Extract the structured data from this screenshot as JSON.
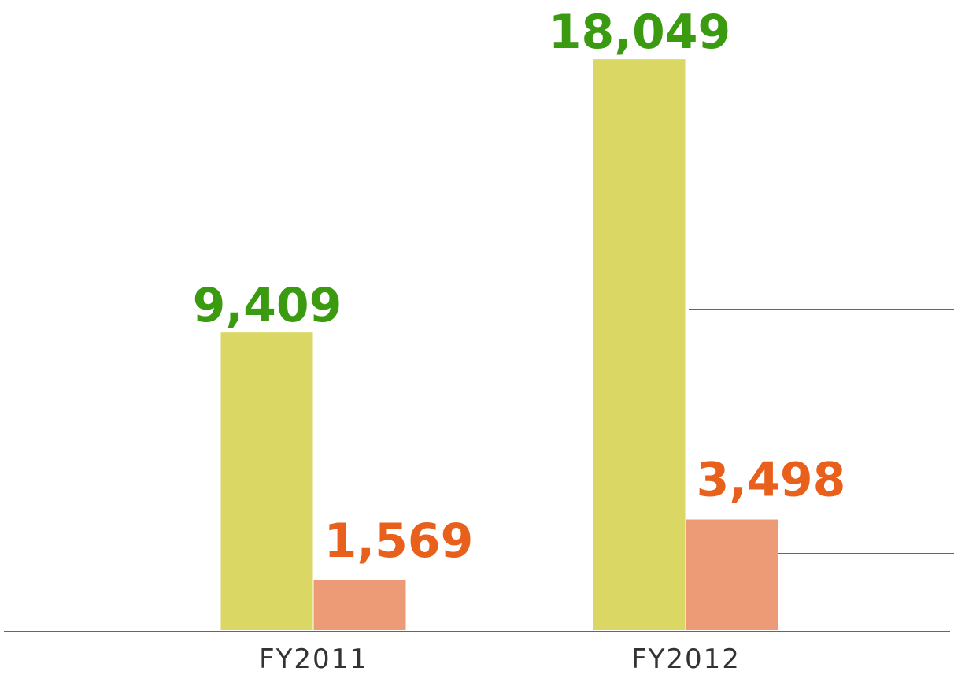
{
  "chart_data": {
    "type": "bar",
    "categories": [
      "FY2011",
      "FY2012"
    ],
    "series": [
      {
        "color": "#dad765",
        "label_color": "#3a9a10",
        "values": [
          9409,
          18049
        ],
        "value_labels": [
          "9,409",
          "18,049"
        ]
      },
      {
        "color": "#ed9b77",
        "label_color": "#e8601c",
        "values": [
          1569,
          3498
        ],
        "value_labels": [
          "1,569",
          "3,498"
        ]
      }
    ],
    "ylim": [
      0,
      19000
    ],
    "grid": false
  }
}
